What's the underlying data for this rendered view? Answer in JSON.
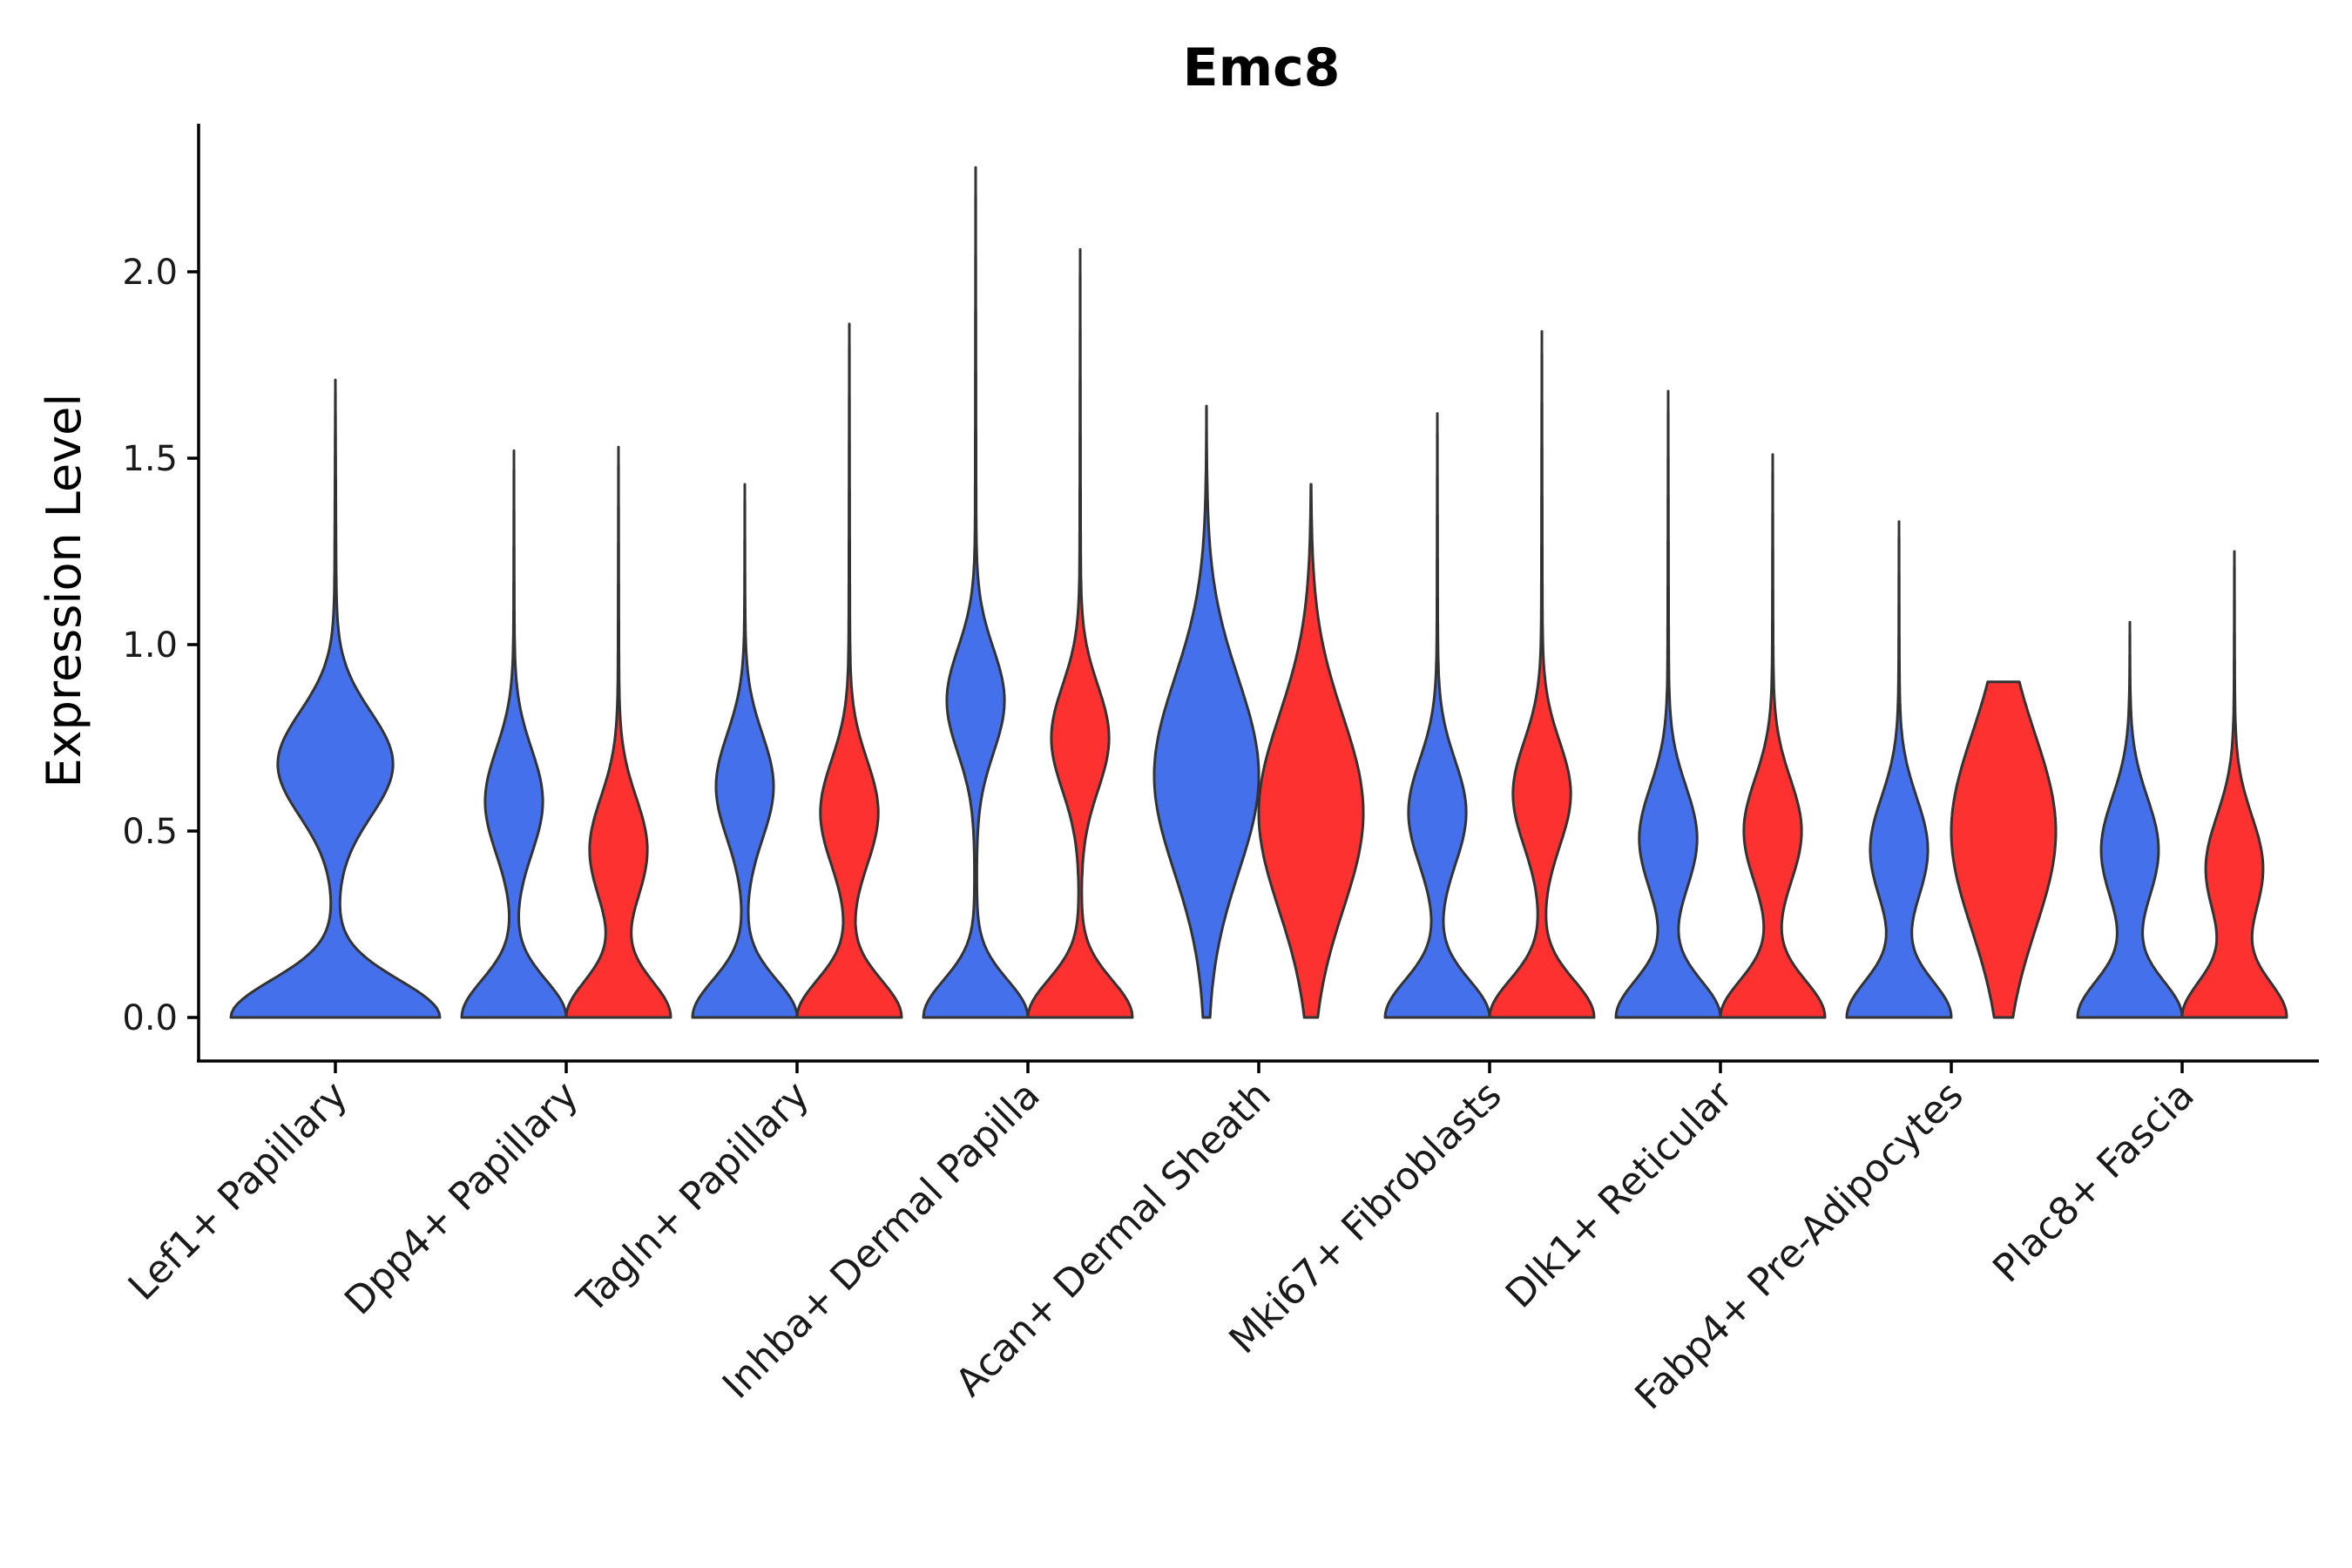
{
  "chart_data": {
    "type": "violin",
    "title": "Emc8",
    "xlabel": "",
    "ylabel": "Expression Level",
    "ylim": [
      -0.11,
      2.4
    ],
    "yticks": [
      0.0,
      0.5,
      1.0,
      1.5,
      2.0
    ],
    "ytick_labels": [
      "0.0",
      "0.5",
      "1.0",
      "1.5",
      "2.0"
    ],
    "categories": [
      "Lef1+ Papillary",
      "Dpp4+ Papillary",
      "Tagln+ Papillary",
      "Inhba+ Dermal Papilla",
      "Acan+ Dermal Sheath",
      "Mki67+ Fibroblasts",
      "Dlk1+ Reticular",
      "Fabp4+ Pre-Adipocytes",
      "Plac8+ Fascia"
    ],
    "series": [
      {
        "name": "group 1",
        "color": "#4470ec",
        "max_values": [
          1.71,
          1.52,
          1.43,
          2.28,
          1.64,
          1.62,
          1.68,
          1.33,
          1.06
        ],
        "modes": [
          [
            0.0,
            0.68
          ],
          [
            0.0,
            0.58
          ],
          [
            0.0,
            0.62
          ],
          [
            0.0,
            0.85
          ],
          [
            0.65
          ],
          [
            0.0,
            0.55
          ],
          [
            0.0,
            0.48
          ],
          [
            0.0,
            0.45
          ],
          [
            0.0,
            0.45
          ]
        ]
      },
      {
        "name": "group 2",
        "color": "#fe3131",
        "max_values": [
          null,
          1.53,
          1.86,
          2.06,
          1.43,
          1.84,
          1.51,
          0.9,
          1.25
        ],
        "modes": [
          [],
          [
            0.0,
            0.45
          ],
          [
            0.0,
            0.55
          ],
          [
            0.0,
            0.75
          ],
          [
            0.55
          ],
          [
            0.0,
            0.6
          ],
          [
            0.0,
            0.5
          ],
          [
            0.5
          ],
          [
            0.0,
            0.4
          ]
        ]
      }
    ]
  }
}
